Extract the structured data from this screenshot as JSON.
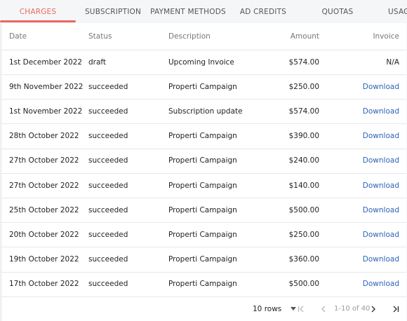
{
  "tabs": [
    {
      "label": "CHARGES"
    },
    {
      "label": "SUBSCRIPTION"
    },
    {
      "label": "PAYMENT METHODS"
    },
    {
      "label": "AD CREDITS"
    },
    {
      "label": "QUOTAS"
    },
    {
      "label": "USAG"
    }
  ],
  "active_tab": "CHARGES",
  "accent_color": "#e9695f",
  "link_color": "#2f62b8",
  "table": {
    "headers": {
      "date": "Date",
      "status": "Status",
      "description": "Description",
      "amount": "Amount",
      "invoice": "Invoice"
    },
    "rows": [
      {
        "date": "1st December 2022",
        "status": "draft",
        "description": "Upcoming Invoice",
        "amount": "$574.00",
        "invoice": "N/A"
      },
      {
        "date": "9th November 2022",
        "status": "succeeded",
        "description": "Properti Campaign",
        "amount": "$250.00",
        "invoice": "Download"
      },
      {
        "date": "1st November 2022",
        "status": "succeeded",
        "description": "Subscription update",
        "amount": "$574.00",
        "invoice": "Download"
      },
      {
        "date": "28th October 2022",
        "status": "succeeded",
        "description": "Properti Campaign",
        "amount": "$390.00",
        "invoice": "Download"
      },
      {
        "date": "27th October 2022",
        "status": "succeeded",
        "description": "Properti Campaign",
        "amount": "$240.00",
        "invoice": "Download"
      },
      {
        "date": "27th October 2022",
        "status": "succeeded",
        "description": "Properti Campaign",
        "amount": "$140.00",
        "invoice": "Download"
      },
      {
        "date": "25th October 2022",
        "status": "succeeded",
        "description": "Properti Campaign",
        "amount": "$500.00",
        "invoice": "Download"
      },
      {
        "date": "20th October 2022",
        "status": "succeeded",
        "description": "Properti Campaign",
        "amount": "$250.00",
        "invoice": "Download"
      },
      {
        "date": "19th October 2022",
        "status": "succeeded",
        "description": "Properti Campaign",
        "amount": "$360.00",
        "invoice": "Download"
      },
      {
        "date": "17th October 2022",
        "status": "succeeded",
        "description": "Properti Campaign",
        "amount": "$500.00",
        "invoice": "Download"
      }
    ]
  },
  "pagination": {
    "rows_per_page": "10 rows",
    "range": "1-10 of 40",
    "first_icon": "first-page-icon",
    "prev_icon": "chevron-left-icon",
    "next_icon": "chevron-right-icon",
    "last_icon": "last-page-icon"
  }
}
